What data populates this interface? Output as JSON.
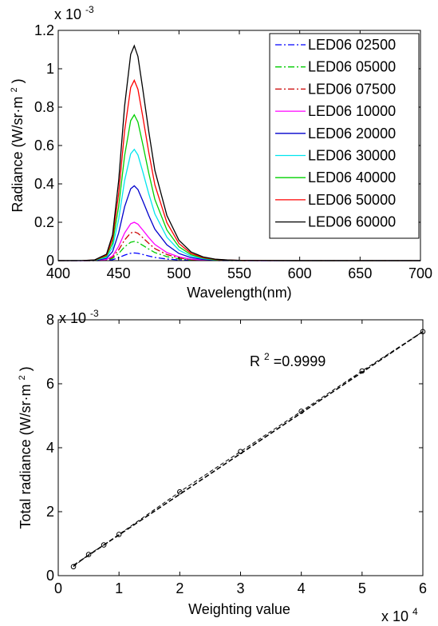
{
  "chart_data": [
    {
      "type": "line",
      "xlabel": "Wavelength(nm)",
      "ylabel": "Radiance (W/sr·m",
      "ylabel_sup": "2",
      "ylabel_end": ")",
      "y_exponent_base": "x 10",
      "y_exponent": "-3",
      "xlim": [
        400,
        700
      ],
      "ylim": [
        0,
        1.2
      ],
      "xticks": [
        "400",
        "450",
        "500",
        "550",
        "600",
        "650",
        "700"
      ],
      "xtick_values": [
        400,
        450,
        500,
        550,
        600,
        650,
        700
      ],
      "yticks": [
        "0",
        "0.2",
        "0.4",
        "0.6",
        "0.8",
        "1",
        "1.2"
      ],
      "ytick_values": [
        0,
        0.2,
        0.4,
        0.6,
        0.8,
        1.0,
        1.2
      ],
      "grid": false,
      "legend_position": "top-right",
      "x": [
        400,
        420,
        430,
        440,
        445,
        450,
        455,
        460,
        463,
        466,
        470,
        475,
        480,
        490,
        500,
        510,
        520,
        530,
        540,
        550,
        570,
        600,
        650,
        700
      ],
      "series": [
        {
          "name": "LED06 02500",
          "color": "#0000ff",
          "dash": "8,3,2,3",
          "peak": 0.04
        },
        {
          "name": "LED06 05000",
          "color": "#00cc00",
          "dash": "8,3,2,3",
          "peak": 0.1
        },
        {
          "name": "LED06 07500",
          "color": "#cc0000",
          "dash": "8,3,2,3",
          "peak": 0.15
        },
        {
          "name": "LED06 10000",
          "color": "#ff00ff",
          "dash": "",
          "peak": 0.2
        },
        {
          "name": "LED06 20000",
          "color": "#0000cc",
          "dash": "",
          "peak": 0.39
        },
        {
          "name": "LED06 30000",
          "color": "#00e5ee",
          "dash": "",
          "peak": 0.58
        },
        {
          "name": "LED06 40000",
          "color": "#00d000",
          "dash": "",
          "peak": 0.76
        },
        {
          "name": "LED06 50000",
          "color": "#ff0000",
          "dash": "",
          "peak": 0.94
        },
        {
          "name": "LED06 60000",
          "color": "#000000",
          "dash": "",
          "peak": 1.12
        }
      ],
      "profile": [
        0,
        0.0005,
        0.003,
        0.03,
        0.12,
        0.37,
        0.72,
        0.96,
        1.0,
        0.95,
        0.8,
        0.6,
        0.42,
        0.21,
        0.095,
        0.04,
        0.017,
        0.007,
        0.003,
        0.0012,
        0.0004,
        0.0001,
        0,
        0
      ]
    },
    {
      "type": "scatter",
      "xlabel": "Weighting value",
      "x_exponent_base": "x 10",
      "x_exponent": "4",
      "ylabel": "Total radiance (W/sr·m",
      "ylabel_sup": "2",
      "ylabel_end": ")",
      "y_exponent_base": "x 10",
      "y_exponent": "-3",
      "xlim": [
        0,
        6
      ],
      "ylim": [
        0,
        8
      ],
      "xticks": [
        "0",
        "1",
        "2",
        "3",
        "4",
        "5",
        "6"
      ],
      "xtick_values": [
        0,
        1,
        2,
        3,
        4,
        5,
        6
      ],
      "yticks": [
        "0",
        "2",
        "4",
        "6",
        "8"
      ],
      "ytick_values": [
        0,
        2,
        4,
        6,
        8
      ],
      "grid": false,
      "annotation_base": "R",
      "annotation_sup": "2",
      "annotation_end": "=0.9999",
      "x": [
        0.25,
        0.5,
        0.75,
        1.0,
        2.0,
        3.0,
        4.0,
        5.0,
        6.0
      ],
      "y": [
        0.28,
        0.66,
        0.96,
        1.29,
        2.62,
        3.88,
        5.14,
        6.4,
        7.63
      ],
      "fit_line": {
        "x": [
          0.25,
          6.0
        ],
        "y": [
          0.32,
          7.63
        ],
        "color": "#000000",
        "dash": "6,3"
      }
    }
  ]
}
